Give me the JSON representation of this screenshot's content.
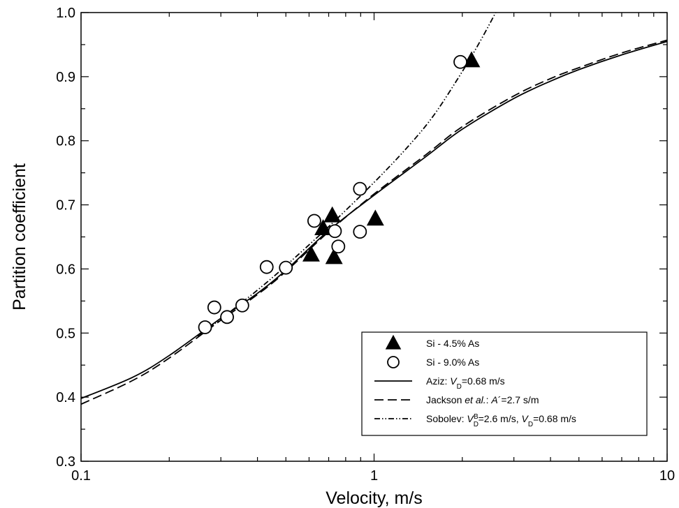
{
  "chart_data": {
    "type": "scatter",
    "title": "",
    "xlabel": "Velocity, m/s",
    "ylabel": "Partition coefficient",
    "xscale": "log",
    "xlim": [
      0.1,
      10
    ],
    "ylim": [
      0.3,
      1.0
    ],
    "x_ticks": [
      {
        "value": 0.1,
        "label": "0.1"
      },
      {
        "value": 1,
        "label": "1"
      },
      {
        "value": 10,
        "label": "10"
      }
    ],
    "y_ticks": [
      {
        "value": 0.3,
        "label": "0.3"
      },
      {
        "value": 0.4,
        "label": "0.4"
      },
      {
        "value": 0.5,
        "label": "0.5"
      },
      {
        "value": 0.6,
        "label": "0.6"
      },
      {
        "value": 0.7,
        "label": "0.7"
      },
      {
        "value": 0.8,
        "label": "0.8"
      },
      {
        "value": 0.9,
        "label": "0.9"
      },
      {
        "value": 1.0,
        "label": "1.0"
      }
    ],
    "grid": false,
    "legend_position": "bottom-right",
    "series": [
      {
        "name": "Si - 4.5% As",
        "kind": "points",
        "marker": "filled-triangle",
        "color": "#000000",
        "points": [
          {
            "x": 0.61,
            "y": 0.622
          },
          {
            "x": 0.67,
            "y": 0.663
          },
          {
            "x": 0.72,
            "y": 0.683
          },
          {
            "x": 0.73,
            "y": 0.618
          },
          {
            "x": 1.01,
            "y": 0.678
          },
          {
            "x": 2.15,
            "y": 0.925
          }
        ]
      },
      {
        "name": "Si - 9.0% As",
        "kind": "points",
        "marker": "open-circle",
        "color": "#000000",
        "points": [
          {
            "x": 0.265,
            "y": 0.509
          },
          {
            "x": 0.285,
            "y": 0.54
          },
          {
            "x": 0.315,
            "y": 0.525
          },
          {
            "x": 0.355,
            "y": 0.543
          },
          {
            "x": 0.43,
            "y": 0.603
          },
          {
            "x": 0.5,
            "y": 0.602
          },
          {
            "x": 0.625,
            "y": 0.675
          },
          {
            "x": 0.735,
            "y": 0.659
          },
          {
            "x": 0.755,
            "y": 0.635
          },
          {
            "x": 0.895,
            "y": 0.658
          },
          {
            "x": 0.895,
            "y": 0.725
          },
          {
            "x": 1.97,
            "y": 0.923
          }
        ]
      },
      {
        "kind": "line",
        "style": "solid",
        "color": "#000000",
        "points": [
          {
            "x": 0.1,
            "y": 0.398
          },
          {
            "x": 0.15,
            "y": 0.431
          },
          {
            "x": 0.2,
            "y": 0.465
          },
          {
            "x": 0.3,
            "y": 0.523
          },
          {
            "x": 0.4,
            "y": 0.562
          },
          {
            "x": 0.5,
            "y": 0.598
          },
          {
            "x": 0.7,
            "y": 0.66
          },
          {
            "x": 1.0,
            "y": 0.715
          },
          {
            "x": 1.5,
            "y": 0.775
          },
          {
            "x": 2.0,
            "y": 0.818
          },
          {
            "x": 3.0,
            "y": 0.866
          },
          {
            "x": 4.0,
            "y": 0.893
          },
          {
            "x": 5.0,
            "y": 0.911
          },
          {
            "x": 7.0,
            "y": 0.934
          },
          {
            "x": 10.0,
            "y": 0.955
          }
        ]
      },
      {
        "kind": "line",
        "style": "dashed",
        "color": "#000000",
        "points": [
          {
            "x": 0.1,
            "y": 0.389
          },
          {
            "x": 0.15,
            "y": 0.426
          },
          {
            "x": 0.2,
            "y": 0.461
          },
          {
            "x": 0.3,
            "y": 0.52
          },
          {
            "x": 0.4,
            "y": 0.56
          },
          {
            "x": 0.5,
            "y": 0.596
          },
          {
            "x": 0.7,
            "y": 0.658
          },
          {
            "x": 1.0,
            "y": 0.717
          },
          {
            "x": 1.5,
            "y": 0.778
          },
          {
            "x": 2.0,
            "y": 0.822
          },
          {
            "x": 3.0,
            "y": 0.87
          },
          {
            "x": 4.0,
            "y": 0.897
          },
          {
            "x": 5.0,
            "y": 0.914
          },
          {
            "x": 7.0,
            "y": 0.937
          },
          {
            "x": 10.0,
            "y": 0.957
          }
        ]
      },
      {
        "kind": "line",
        "style": "dash-dot-dot",
        "color": "#000000",
        "points": [
          {
            "x": 0.25,
            "y": 0.495
          },
          {
            "x": 0.3,
            "y": 0.522
          },
          {
            "x": 0.4,
            "y": 0.567
          },
          {
            "x": 0.5,
            "y": 0.605
          },
          {
            "x": 0.7,
            "y": 0.666
          },
          {
            "x": 1.0,
            "y": 0.735
          },
          {
            "x": 1.3,
            "y": 0.79
          },
          {
            "x": 1.6,
            "y": 0.84
          },
          {
            "x": 2.0,
            "y": 0.908
          },
          {
            "x": 2.3,
            "y": 0.955
          },
          {
            "x": 2.6,
            "y": 1.0
          }
        ]
      }
    ],
    "legend": {
      "entries": [
        {
          "marker": "filled-triangle",
          "text_parts": [
            {
              "t": "Si - 4.5% As"
            }
          ]
        },
        {
          "marker": "open-circle",
          "text_parts": [
            {
              "t": "Si - 9.0% As"
            }
          ]
        },
        {
          "marker": "solid",
          "text_parts": [
            {
              "t": "Aziz:  "
            },
            {
              "t": "V",
              "italic": true
            },
            {
              "t": "D",
              "sub": true
            },
            {
              "t": "=0.68 m/s"
            }
          ]
        },
        {
          "marker": "dashed",
          "text_parts": [
            {
              "t": "Jackson "
            },
            {
              "t": "et al.",
              "italic": true
            },
            {
              "t": ":  "
            },
            {
              "t": "A",
              "italic": true
            },
            {
              "t": "´=2.7 s/m"
            }
          ]
        },
        {
          "marker": "dash-dot-dot",
          "text_parts": [
            {
              "t": "Sobolev:  "
            },
            {
              "t": "V",
              "italic": true
            },
            {
              "t": "D",
              "sub": true
            },
            {
              "t": "B",
              "sup": true
            },
            {
              "t": "=2.6 m/s,  "
            },
            {
              "t": "V",
              "italic": true
            },
            {
              "t": "D",
              "sub": true
            },
            {
              "t": "=0.68 m/s"
            }
          ]
        }
      ]
    }
  }
}
